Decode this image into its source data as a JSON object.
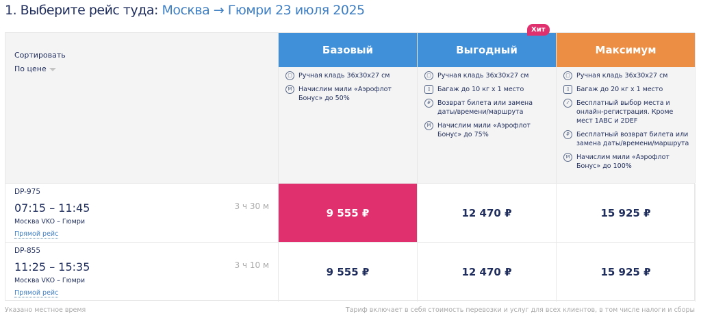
{
  "title": {
    "prefix": "1. Выберите рейс туда:",
    "route": "Москва →  Гюмри 23 июля 2025"
  },
  "sort": {
    "label": "Сортировать",
    "value": "По цене"
  },
  "colors": {
    "base": "#4090d9",
    "profit": "#4090d9",
    "max": "#ec8e44",
    "selected": "#e0306e"
  },
  "hit_badge": "Хит",
  "tariffs": [
    {
      "name": "Базовый",
      "features": [
        {
          "icon": "hand-luggage-icon",
          "text": "Ручная кладь 36х30х27 см"
        },
        {
          "icon": "miles-icon",
          "text": "Начислим мили «Аэрофлот Бонус» до 50%"
        }
      ]
    },
    {
      "name": "Выгодный",
      "features": [
        {
          "icon": "hand-luggage-icon",
          "text": "Ручная кладь 36х30х27 см"
        },
        {
          "icon": "baggage-icon",
          "text": "Багаж до 10 кг х 1 место"
        },
        {
          "icon": "refund-icon",
          "text": "Возврат билета или замена даты/времени/маршрута"
        },
        {
          "icon": "miles-icon",
          "text": "Начислим мили «Аэрофлот Бонус» до 75%"
        }
      ]
    },
    {
      "name": "Максимум",
      "features": [
        {
          "icon": "hand-luggage-icon",
          "text": "Ручная кладь 36х30х27 см"
        },
        {
          "icon": "baggage-icon",
          "text": "Багаж до 20 кг х 1 место"
        },
        {
          "icon": "seat-icon",
          "text": "Бесплатный выбор места и онлайн-регистрация. Кроме мест 1ABC и 2DEF"
        },
        {
          "icon": "refund-icon",
          "text": "Бесплатный возврат билета или замена даты/времени/маршрута"
        },
        {
          "icon": "miles-icon",
          "text": "Начислим мили «Аэрофлот Бонус» до 100%"
        }
      ]
    }
  ],
  "flights": [
    {
      "number": "DP-975",
      "time": "07:15 – 11:45",
      "route": "Москва VKO – Гюмри",
      "type": "Прямой рейс",
      "duration": "3 ч 30 м",
      "prices": [
        "9 555 ₽",
        "12 470 ₽",
        "15 925 ₽"
      ],
      "selected": 0
    },
    {
      "number": "DP-855",
      "time": "11:25 – 15:35",
      "route": "Москва VKO – Гюмри",
      "type": "Прямой рейс",
      "duration": "3 ч 10 м",
      "prices": [
        "9 555 ₽",
        "12 470 ₽",
        "15 925 ₽"
      ],
      "selected": -1
    }
  ],
  "footer": {
    "left": "Указано местное время",
    "right": "Тариф включает в себя стоимость перевозки и услуг для всех клиентов, в том числе налоги и сборы"
  }
}
